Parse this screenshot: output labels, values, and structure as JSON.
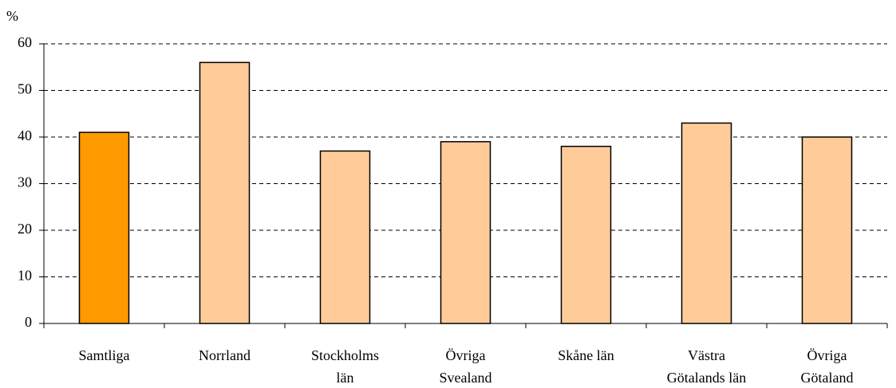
{
  "chart_data": {
    "type": "bar",
    "y_label": "%",
    "categories": [
      "Samtliga",
      "Norrland",
      "Stockholms\nlän",
      "Övriga\nSvealand",
      "Skåne län",
      "Västra\nGötalands län",
      "Övriga\nGötaland"
    ],
    "values": [
      41,
      56,
      37,
      39,
      38,
      43,
      40
    ],
    "colors": [
      "#ff9900",
      "#ffcc99",
      "#ffcc99",
      "#ffcc99",
      "#ffcc99",
      "#ffcc99",
      "#ffcc99"
    ],
    "ylim": [
      0,
      60
    ],
    "yticks": [
      0,
      10,
      20,
      30,
      40,
      50,
      60
    ],
    "grid": true
  }
}
